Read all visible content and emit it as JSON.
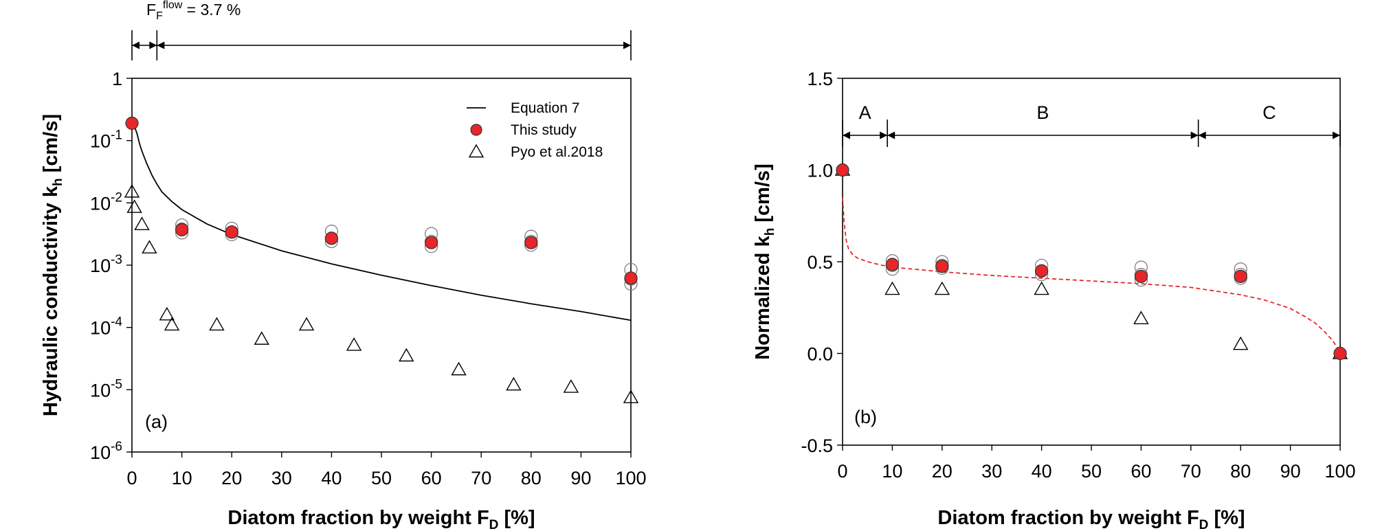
{
  "chart_data": [
    {
      "type": "scatter",
      "panel_label": "(a)",
      "xlabel": "Diatom fraction by weight F",
      "xlabel_sub": "D",
      "xlabel_unit": " [%]",
      "ylabel": "Hydraulic conductivity k",
      "ylabel_sub": "h",
      "ylabel_unit": " [cm/s]",
      "xlim": [
        0,
        100
      ],
      "ylim": [
        1e-06,
        1
      ],
      "yscale": "log",
      "grid": false,
      "legend_position": "top-right",
      "x_ticks": [
        0,
        10,
        20,
        30,
        40,
        50,
        60,
        70,
        80,
        90,
        100
      ],
      "y_ticks": [
        {
          "value": 1,
          "label": "1"
        },
        {
          "value": 0.1,
          "base": "10",
          "exp": "-1"
        },
        {
          "value": 0.01,
          "base": "10",
          "exp": "-2"
        },
        {
          "value": 0.001,
          "base": "10",
          "exp": "-3"
        },
        {
          "value": 0.0001,
          "base": "10",
          "exp": "-4"
        },
        {
          "value": 1e-05,
          "base": "10",
          "exp": "-5"
        },
        {
          "value": 1e-06,
          "base": "10",
          "exp": "-6"
        }
      ],
      "annotation": {
        "base": "F",
        "sub": "F",
        "sup": "flow",
        "rest": " = 3.7 %",
        "x_range_left": [
          0,
          5
        ],
        "x_range_right": [
          5,
          100
        ]
      },
      "legend": [
        {
          "label": "Equation 7",
          "marker": "line"
        },
        {
          "label": "This study",
          "marker": "red-circle"
        },
        {
          "label": "Pyo et al.2018",
          "marker": "triangle"
        }
      ],
      "series": [
        {
          "name": "Equation 7",
          "style": "line",
          "color": "#000000",
          "x": [
            0.5,
            1,
            1.5,
            2,
            3,
            4,
            5,
            6,
            8,
            10,
            15,
            20,
            30,
            40,
            50,
            60,
            70,
            80,
            90,
            100
          ],
          "y": [
            0.17,
            0.13,
            0.09,
            0.068,
            0.042,
            0.028,
            0.02,
            0.015,
            0.0105,
            0.0078,
            0.0046,
            0.0031,
            0.0017,
            0.00105,
            0.00069,
            0.00047,
            0.00033,
            0.00024,
            0.00018,
            0.00013
          ]
        },
        {
          "name": "This study",
          "style": "red-circle",
          "color": "#e8262a",
          "x": [
            0,
            10,
            20,
            40,
            60,
            80,
            100
          ],
          "y": [
            0.19,
            0.0037,
            0.0034,
            0.0027,
            0.0023,
            0.0023,
            0.00062
          ]
        },
        {
          "name": "This study replicates",
          "style": "open-circle-gray",
          "color": "#808080",
          "x": [
            10,
            10,
            10,
            20,
            20,
            20,
            40,
            40,
            40,
            60,
            60,
            60,
            80,
            80,
            80,
            100,
            100,
            100
          ],
          "y": [
            0.0044,
            0.0038,
            0.0033,
            0.0039,
            0.0034,
            0.0031,
            0.0035,
            0.0027,
            0.0024,
            0.0032,
            0.0024,
            0.002,
            0.0029,
            0.0024,
            0.0021,
            0.00085,
            0.0006,
            0.0005
          ]
        },
        {
          "name": "Pyo et al.2018",
          "style": "triangle",
          "color": "#000000",
          "x": [
            0,
            0.5,
            2,
            3.5,
            7,
            8,
            17,
            26,
            35,
            44.5,
            55,
            65.5,
            76.5,
            88,
            100
          ],
          "y": [
            0.015,
            0.0085,
            0.0045,
            0.0019,
            0.00016,
            0.00011,
            0.00011,
            6.5e-05,
            0.00011,
            5.2e-05,
            3.5e-05,
            2.1e-05,
            1.2e-05,
            1.1e-05,
            7.5e-06
          ]
        }
      ]
    },
    {
      "type": "scatter",
      "panel_label": "(b)",
      "xlabel": "Diatom fraction by weight F",
      "xlabel_sub": "D",
      "xlabel_unit": " [%]",
      "ylabel": "Normalized k",
      "ylabel_sub": "h",
      "ylabel_unit": " [cm/s]",
      "xlim": [
        0,
        100
      ],
      "ylim": [
        -0.5,
        1.5
      ],
      "grid": false,
      "x_ticks": [
        0,
        10,
        20,
        30,
        40,
        50,
        60,
        70,
        80,
        90,
        100
      ],
      "y_ticks": [
        {
          "value": 1.5,
          "label": "1.5"
        },
        {
          "value": 1.0,
          "label": "1.0"
        },
        {
          "value": 0.5,
          "label": "0.5"
        },
        {
          "value": 0.0,
          "label": "0.0"
        },
        {
          "value": -0.5,
          "label": "-0.5"
        }
      ],
      "regions": [
        {
          "label": "A",
          "x_range": [
            0,
            9
          ]
        },
        {
          "label": "B",
          "x_range": [
            9,
            71.5
          ]
        },
        {
          "label": "C",
          "x_range": [
            71.5,
            100
          ]
        }
      ],
      "series": [
        {
          "name": "fit",
          "style": "dashed-red-line",
          "color": "#e8262a",
          "x": [
            0,
            0.3,
            0.7,
            1.2,
            2,
            3,
            5,
            8,
            12,
            20,
            30,
            40,
            50,
            60,
            70,
            80,
            85,
            90,
            93,
            95,
            97,
            98.5,
            99.5,
            100
          ],
          "y": [
            0.85,
            0.72,
            0.62,
            0.57,
            0.54,
            0.52,
            0.5,
            0.48,
            0.465,
            0.445,
            0.425,
            0.41,
            0.395,
            0.38,
            0.36,
            0.32,
            0.29,
            0.245,
            0.2,
            0.165,
            0.115,
            0.07,
            0.03,
            0.0
          ]
        },
        {
          "name": "This study",
          "style": "red-circle",
          "color": "#e8262a",
          "x": [
            0,
            10,
            20,
            40,
            60,
            80,
            100
          ],
          "y": [
            1.0,
            0.485,
            0.475,
            0.45,
            0.42,
            0.42,
            0.0
          ]
        },
        {
          "name": "This study replicates",
          "style": "open-circle-gray",
          "color": "#808080",
          "x": [
            10,
            10,
            10,
            20,
            20,
            20,
            40,
            40,
            40,
            60,
            60,
            60,
            80,
            80,
            80
          ],
          "y": [
            0.505,
            0.48,
            0.46,
            0.5,
            0.48,
            0.465,
            0.48,
            0.45,
            0.43,
            0.47,
            0.43,
            0.4,
            0.46,
            0.43,
            0.41
          ]
        },
        {
          "name": "Pyo et al.2018",
          "style": "triangle",
          "color": "#000000",
          "x": [
            0,
            10,
            20,
            40,
            60,
            80,
            100
          ],
          "y": [
            1.0,
            0.35,
            0.35,
            0.35,
            0.19,
            0.05,
            0.0
          ]
        }
      ]
    }
  ]
}
